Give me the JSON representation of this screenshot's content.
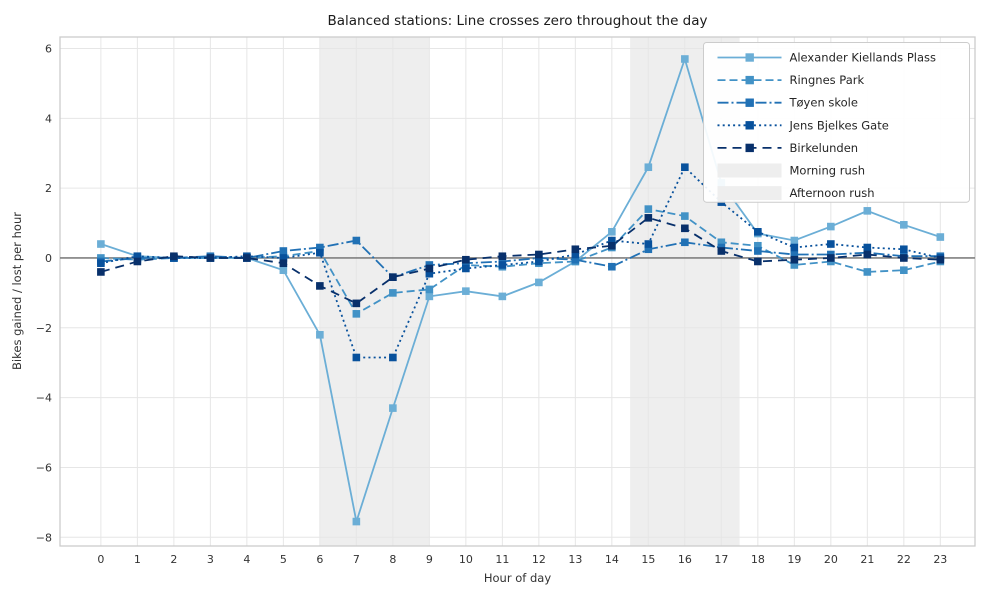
{
  "figure": {
    "title": "Balanced stations: Line crosses zero throughout the day",
    "xlabel": "Hour of day",
    "ylabel": "Bikes gained / lost per hour"
  },
  "chart_data": {
    "type": "line",
    "title": "Balanced stations: Line crosses zero throughout the day",
    "xlabel": "Hour of day",
    "ylabel": "Bikes gained / lost per hour",
    "x": [
      0,
      1,
      2,
      3,
      4,
      5,
      6,
      7,
      8,
      9,
      10,
      11,
      12,
      13,
      14,
      15,
      16,
      17,
      18,
      19,
      20,
      21,
      22,
      23
    ],
    "xtick_labels": [
      "0",
      "1",
      "2",
      "3",
      "4",
      "5",
      "6",
      "7",
      "8",
      "9",
      "10",
      "11",
      "12",
      "13",
      "14",
      "15",
      "16",
      "17",
      "18",
      "19",
      "20",
      "21",
      "22",
      "23"
    ],
    "yticks": [
      -8,
      -6,
      -4,
      -2,
      0,
      2,
      4,
      6
    ],
    "ytick_labels": [
      "−8",
      "−6",
      "−4",
      "−2",
      "0",
      "2",
      "4",
      "6"
    ],
    "xlim": [
      -1.12,
      23.95
    ],
    "ylim": [
      -8.25,
      6.33
    ],
    "grid": true,
    "zero_line": true,
    "zero_line_color": "#808080",
    "grid_color": "#e6e6e6",
    "spine_color": "#cccccc",
    "legend_position": "upper right",
    "series": [
      {
        "name": "Alexander Kiellands Plass",
        "style": "solid",
        "marker": "square",
        "color": "#6baed6",
        "values": [
          0.4,
          0.05,
          0.0,
          0.0,
          0.0,
          -0.35,
          -2.2,
          -7.55,
          -4.3,
          -1.1,
          -0.95,
          -1.1,
          -0.7,
          -0.1,
          0.75,
          2.6,
          5.7,
          2.15,
          0.7,
          0.5,
          0.9,
          1.35,
          0.95,
          0.6
        ]
      },
      {
        "name": "Ringnes Park",
        "style": "dashed",
        "marker": "square",
        "color": "#4292c6",
        "values": [
          0.0,
          -0.05,
          0.0,
          0.0,
          0.0,
          0.05,
          0.2,
          -1.6,
          -1.0,
          -0.9,
          -0.2,
          -0.25,
          -0.15,
          -0.1,
          0.3,
          1.4,
          1.2,
          0.45,
          0.35,
          -0.2,
          -0.1,
          -0.4,
          -0.35,
          -0.1
        ]
      },
      {
        "name": "Tøyen skole",
        "style": "dashdot",
        "marker": "square",
        "color": "#2171b5",
        "values": [
          -0.1,
          0.0,
          0.0,
          0.05,
          0.0,
          0.2,
          0.3,
          0.5,
          -0.55,
          -0.2,
          -0.15,
          -0.1,
          0.0,
          -0.05,
          -0.25,
          0.25,
          0.45,
          0.3,
          0.2,
          0.1,
          0.1,
          0.15,
          0.05,
          0.05
        ]
      },
      {
        "name": "Jens Bjelkes Gate",
        "style": "dotted",
        "marker": "square",
        "color": "#08519c",
        "values": [
          -0.15,
          0.05,
          0.0,
          0.0,
          0.05,
          0.0,
          0.15,
          -2.85,
          -2.85,
          -0.45,
          -0.3,
          -0.2,
          -0.1,
          0.1,
          0.5,
          0.4,
          2.6,
          1.6,
          0.75,
          0.3,
          0.4,
          0.3,
          0.25,
          0.0
        ]
      },
      {
        "name": "Birkelunden",
        "style": "longdash",
        "marker": "square",
        "color": "#08306b",
        "values": [
          -0.4,
          -0.1,
          0.05,
          0.0,
          0.0,
          -0.15,
          -0.8,
          -1.3,
          -0.55,
          -0.3,
          -0.05,
          0.05,
          0.1,
          0.25,
          0.35,
          1.15,
          0.85,
          0.2,
          -0.1,
          -0.05,
          0.0,
          0.1,
          0.0,
          -0.05
        ]
      }
    ],
    "regions": [
      {
        "name": "Morning rush",
        "x0": 6.0,
        "x1": 9.0,
        "color": "#eeeeee"
      },
      {
        "name": "Afternoon rush",
        "x0": 14.5,
        "x1": 17.5,
        "color": "#eeeeee"
      }
    ]
  }
}
